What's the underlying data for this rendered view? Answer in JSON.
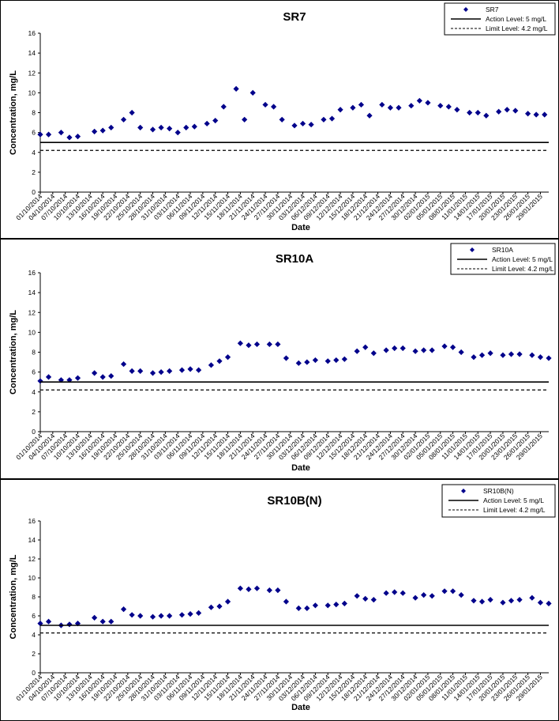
{
  "colors": {
    "marker": "#00008B",
    "line": "#000000"
  },
  "x_tick_labels": [
    "01/10/2014",
    "04/10/2014",
    "07/10/2014",
    "10/10/2014",
    "13/10/2014",
    "16/10/2014",
    "19/10/2014",
    "22/10/2014",
    "25/10/2014",
    "28/10/2014",
    "31/10/2014",
    "03/11/2014",
    "06/11/2014",
    "09/11/2014",
    "12/11/2014",
    "15/11/2014",
    "18/11/2014",
    "21/11/2014",
    "24/11/2014",
    "27/11/2014",
    "30/11/2014",
    "03/12/2014",
    "06/12/2014",
    "09/12/2014",
    "12/12/2014",
    "15/12/2014",
    "18/12/2014",
    "21/12/2014",
    "24/12/2014",
    "27/12/2014",
    "30/12/2014",
    "02/01/2015",
    "05/01/2015",
    "08/01/2015",
    "11/01/2015",
    "14/01/2015",
    "17/01/2015",
    "20/01/2015",
    "23/01/2015",
    "26/01/2015",
    "29/01/2015"
  ],
  "chart_data": [
    {
      "type": "scatter",
      "title": "SR7",
      "xlabel": "Date",
      "ylabel": "Concentration, mg/L",
      "ylim": [
        0,
        16
      ],
      "yticks": [
        0,
        2,
        4,
        6,
        8,
        10,
        12,
        14,
        16
      ],
      "x_range": [
        "01/10/2014",
        "31/01/2015"
      ],
      "legend_position": "top-right",
      "series": [
        {
          "name": "SR7",
          "kind": "marker",
          "x": [
            "01/10/2014",
            "03/10/2014",
            "06/10/2014",
            "08/10/2014",
            "10/10/2014",
            "14/10/2014",
            "16/10/2014",
            "18/10/2014",
            "21/10/2014",
            "23/10/2014",
            "25/10/2014",
            "28/10/2014",
            "30/10/2014",
            "01/11/2014",
            "03/11/2014",
            "05/11/2014",
            "07/11/2014",
            "10/11/2014",
            "12/11/2014",
            "14/11/2014",
            "17/11/2014",
            "19/11/2014",
            "21/11/2014",
            "24/11/2014",
            "26/11/2014",
            "28/11/2014",
            "01/12/2014",
            "03/12/2014",
            "05/12/2014",
            "08/12/2014",
            "10/12/2014",
            "12/12/2014",
            "15/12/2014",
            "17/12/2014",
            "19/12/2014",
            "22/12/2014",
            "24/12/2014",
            "26/12/2014",
            "29/12/2014",
            "31/12/2014",
            "02/01/2015",
            "05/01/2015",
            "07/01/2015",
            "09/01/2015",
            "12/01/2015",
            "14/01/2015",
            "16/01/2015",
            "19/01/2015",
            "21/01/2015",
            "23/01/2015",
            "26/01/2015",
            "28/01/2015",
            "30/01/2015"
          ],
          "y": [
            5.8,
            5.8,
            6.0,
            5.5,
            5.6,
            6.1,
            6.2,
            6.5,
            7.3,
            8.0,
            6.5,
            6.3,
            6.5,
            6.4,
            6.0,
            6.5,
            6.6,
            6.9,
            7.2,
            8.6,
            10.4,
            7.3,
            10.0,
            8.8,
            8.6,
            7.3,
            6.7,
            6.9,
            6.8,
            7.3,
            7.4,
            8.3,
            8.5,
            8.8,
            7.7,
            8.8,
            8.5,
            8.5,
            8.7,
            9.2,
            9.0,
            8.7,
            8.6,
            8.3,
            8.0,
            8.0,
            7.7,
            8.1,
            8.3,
            8.2,
            7.9,
            7.8,
            7.8
          ]
        },
        {
          "name": "Action Level: 5 mg/L",
          "kind": "solid",
          "y": 5
        },
        {
          "name": "Limit Level: 4.2 mg/L",
          "kind": "dashed",
          "y": 4.2
        }
      ]
    },
    {
      "type": "scatter",
      "title": "SR10A",
      "xlabel": "Date",
      "ylabel": "Concentration, mg/L",
      "ylim": [
        0,
        16
      ],
      "yticks": [
        0,
        2,
        4,
        6,
        8,
        10,
        12,
        14,
        16
      ],
      "x_range": [
        "01/10/2014",
        "31/01/2015"
      ],
      "legend_position": "top-right",
      "series": [
        {
          "name": "SR10A",
          "kind": "marker",
          "x": [
            "01/10/2014",
            "03/10/2014",
            "06/10/2014",
            "08/10/2014",
            "10/10/2014",
            "14/10/2014",
            "16/10/2014",
            "18/10/2014",
            "21/10/2014",
            "23/10/2014",
            "25/10/2014",
            "28/10/2014",
            "30/10/2014",
            "01/11/2014",
            "04/11/2014",
            "06/11/2014",
            "08/11/2014",
            "11/11/2014",
            "13/11/2014",
            "15/11/2014",
            "18/11/2014",
            "20/11/2014",
            "22/11/2014",
            "25/11/2014",
            "27/11/2014",
            "29/11/2014",
            "02/12/2014",
            "04/12/2014",
            "06/12/2014",
            "09/12/2014",
            "11/12/2014",
            "13/12/2014",
            "16/12/2014",
            "18/12/2014",
            "20/12/2014",
            "23/12/2014",
            "25/12/2014",
            "27/12/2014",
            "30/12/2014",
            "01/01/2015",
            "03/01/2015",
            "06/01/2015",
            "08/01/2015",
            "10/01/2015",
            "13/01/2015",
            "15/01/2015",
            "17/01/2015",
            "20/01/2015",
            "22/01/2015",
            "24/01/2015",
            "27/01/2015",
            "29/01/2015",
            "31/01/2015"
          ],
          "y": [
            5.1,
            5.5,
            5.2,
            5.2,
            5.4,
            5.9,
            5.5,
            5.6,
            6.8,
            6.1,
            6.1,
            5.9,
            6.0,
            6.1,
            6.2,
            6.3,
            6.2,
            6.7,
            7.1,
            7.5,
            8.9,
            8.7,
            8.8,
            8.8,
            8.8,
            7.4,
            6.9,
            7.0,
            7.2,
            7.1,
            7.2,
            7.3,
            8.1,
            8.5,
            7.9,
            8.2,
            8.4,
            8.4,
            8.1,
            8.2,
            8.2,
            8.6,
            8.5,
            8.0,
            7.5,
            7.7,
            7.9,
            7.7,
            7.8,
            7.8,
            7.7,
            7.5,
            7.4
          ]
        },
        {
          "name": "Action Level: 5 mg/L",
          "kind": "solid",
          "y": 5
        },
        {
          "name": "Limit Level: 4.2 mg/L",
          "kind": "dashed",
          "y": 4.2
        }
      ]
    },
    {
      "type": "scatter",
      "title": "SR10B(N)",
      "xlabel": "Date",
      "ylabel": "Concentration, mg/L",
      "ylim": [
        0,
        16
      ],
      "yticks": [
        0,
        2,
        4,
        6,
        8,
        10,
        12,
        14,
        16
      ],
      "x_range": [
        "01/10/2014",
        "31/01/2015"
      ],
      "legend_position": "top-right",
      "series": [
        {
          "name": "SR10B(N)",
          "kind": "marker",
          "x": [
            "01/10/2014",
            "03/10/2014",
            "06/10/2014",
            "08/10/2014",
            "10/10/2014",
            "14/10/2014",
            "16/10/2014",
            "18/10/2014",
            "21/10/2014",
            "23/10/2014",
            "25/10/2014",
            "28/10/2014",
            "30/10/2014",
            "01/11/2014",
            "04/11/2014",
            "06/11/2014",
            "08/11/2014",
            "11/11/2014",
            "13/11/2014",
            "15/11/2014",
            "18/11/2014",
            "20/11/2014",
            "22/11/2014",
            "25/11/2014",
            "27/11/2014",
            "29/11/2014",
            "02/12/2014",
            "04/12/2014",
            "06/12/2014",
            "09/12/2014",
            "11/12/2014",
            "13/12/2014",
            "16/12/2014",
            "18/12/2014",
            "20/12/2014",
            "23/12/2014",
            "25/12/2014",
            "27/12/2014",
            "30/12/2014",
            "01/01/2015",
            "03/01/2015",
            "06/01/2015",
            "08/01/2015",
            "10/01/2015",
            "13/01/2015",
            "15/01/2015",
            "17/01/2015",
            "20/01/2015",
            "22/01/2015",
            "24/01/2015",
            "27/01/2015",
            "29/01/2015",
            "31/01/2015"
          ],
          "y": [
            5.2,
            5.4,
            5.0,
            5.1,
            5.2,
            5.8,
            5.4,
            5.4,
            6.7,
            6.1,
            6.0,
            5.9,
            6.0,
            6.0,
            6.1,
            6.2,
            6.3,
            6.9,
            7.0,
            7.5,
            8.9,
            8.8,
            8.9,
            8.7,
            8.7,
            7.5,
            6.8,
            6.8,
            7.1,
            7.1,
            7.2,
            7.3,
            8.1,
            7.8,
            7.7,
            8.4,
            8.5,
            8.4,
            7.9,
            8.2,
            8.1,
            8.6,
            8.6,
            8.2,
            7.6,
            7.5,
            7.7,
            7.4,
            7.6,
            7.7,
            7.9,
            7.4,
            7.3
          ]
        },
        {
          "name": "Action Level: 5 mg/L",
          "kind": "solid",
          "y": 5
        },
        {
          "name": "Limit Level: 4.2 mg/L",
          "kind": "dashed",
          "y": 4.2
        }
      ]
    }
  ]
}
